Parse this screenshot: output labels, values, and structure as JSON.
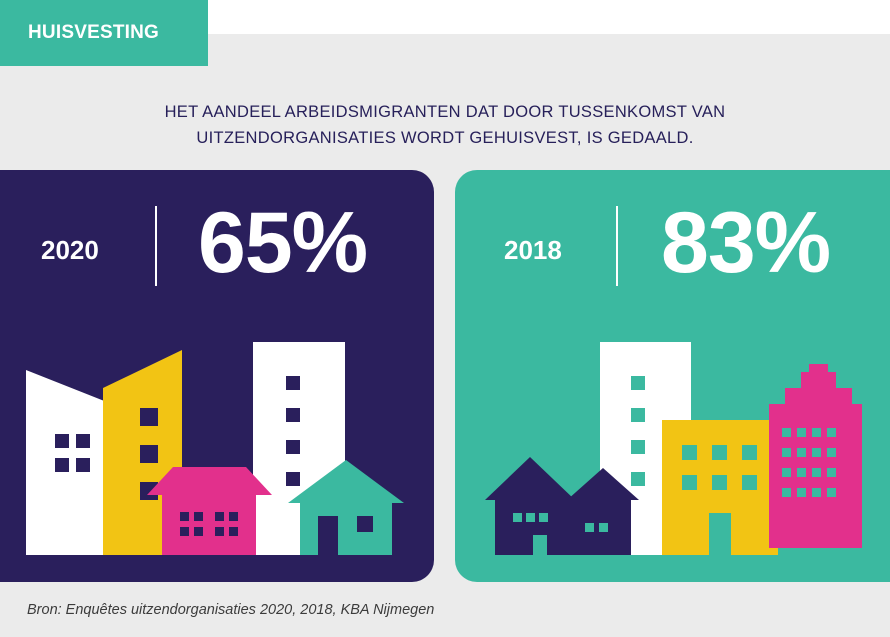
{
  "category_tag": "HUISVESTING",
  "headline": {
    "line1": "HET AANDEEL ARBEIDSMIGRANTEN DAT DOOR TUSSENKOMST VAN",
    "line2": "UITZENDORGANISATIES WORDT GEHUISVEST, IS GEDAALD."
  },
  "panels": [
    {
      "year": "2020",
      "percentage": "65%",
      "color": "#2a1f5c"
    },
    {
      "year": "2018",
      "percentage": "83%",
      "color": "#3bb9a0"
    }
  ],
  "colors": {
    "navy": "#2a1f5c",
    "teal": "#3bb9a0",
    "yellow": "#f2c414",
    "pink": "#e2308c",
    "white": "#ffffff"
  },
  "source": "Bron: Enquêtes uitzendorganisaties 2020, 2018, KBA Nijmegen"
}
